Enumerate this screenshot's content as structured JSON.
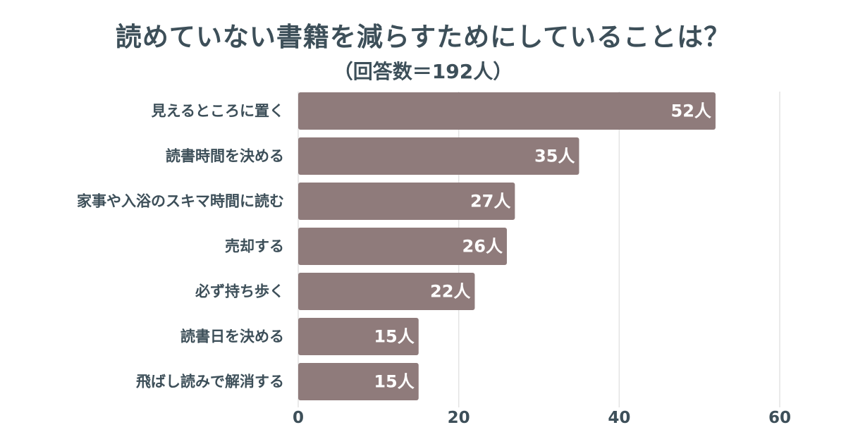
{
  "chart_data": {
    "type": "bar",
    "orientation": "horizontal",
    "title": "読めていない書籍を減らすためにしていることは？",
    "subtitle": "（回答数＝192人）",
    "categories": [
      "見えるところに置く",
      "読書時間を決める",
      "家事や入浴のスキマ時間に読む",
      "売却する",
      "必ず持ち歩く",
      "読書日を決める",
      "飛ばし読みで解消する"
    ],
    "values": [
      52,
      35,
      27,
      26,
      22,
      15,
      15
    ],
    "value_labels": [
      "52人",
      "35人",
      "27人",
      "26人",
      "22人",
      "15人",
      "15人"
    ],
    "xlim": [
      0,
      60
    ],
    "x_ticks": [
      0,
      20,
      40,
      60
    ],
    "x_tick_labels": [
      "0",
      "20",
      "40",
      "60"
    ],
    "grid": true,
    "legend": "none",
    "colors": {
      "bar": "#8f7b7b",
      "text": "#3d4f59",
      "grid": "#e3e3e3",
      "value_label": "#ffffff"
    }
  }
}
